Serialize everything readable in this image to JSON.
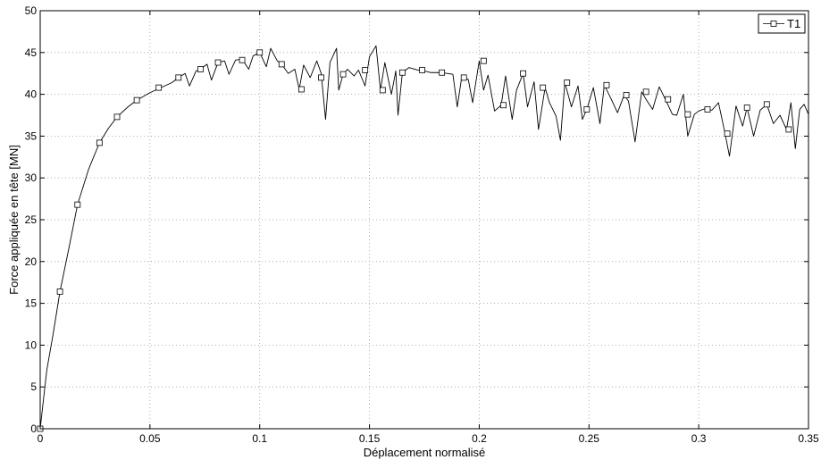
{
  "chart_data": {
    "type": "line",
    "xlabel": "Déplacement normalisé",
    "ylabel": "Force appliquée en tête [MN]",
    "xlim": [
      0,
      0.35
    ],
    "ylim": [
      0,
      50
    ],
    "xticks": [
      0,
      0.05,
      0.1,
      0.15,
      0.2,
      0.25,
      0.3,
      0.35
    ],
    "xtick_labels": [
      "0",
      "0.05",
      "0.1",
      "0.15",
      "0.2",
      "0.25",
      "0.3",
      "0.35"
    ],
    "yticks": [
      0,
      5,
      10,
      15,
      20,
      25,
      30,
      35,
      40,
      45,
      50
    ],
    "ytick_labels": [
      "0",
      "5",
      "10",
      "15",
      "20",
      "25",
      "30",
      "35",
      "40",
      "45",
      "50"
    ],
    "grid": true,
    "legend_position": "top-right",
    "series": [
      {
        "name": "T1",
        "color": "#000000",
        "marker": "square",
        "x": [
          0,
          0.003,
          0.006,
          0.009,
          0.013,
          0.017,
          0.022,
          0.027,
          0.031,
          0.035,
          0.04,
          0.044,
          0.05,
          0.055,
          0.06,
          0.063,
          0.066,
          0.068,
          0.071,
          0.073,
          0.076,
          0.078,
          0.081,
          0.084,
          0.086,
          0.089,
          0.092,
          0.095,
          0.097,
          0.1,
          0.103,
          0.105,
          0.108,
          0.11,
          0.113,
          0.116,
          0.118,
          0.12,
          0.123,
          0.126,
          0.128,
          0.13,
          0.132,
          0.135,
          0.136,
          0.138,
          0.14,
          0.143,
          0.145,
          0.148,
          0.15,
          0.153,
          0.155,
          0.157,
          0.16,
          0.162,
          0.163,
          0.165,
          0.168,
          0.172,
          0.175,
          0.178,
          0.183,
          0.188,
          0.19,
          0.192,
          0.195,
          0.197,
          0.2,
          0.202,
          0.204,
          0.207,
          0.21,
          0.212,
          0.215,
          0.217,
          0.22,
          0.222,
          0.225,
          0.227,
          0.23,
          0.232,
          0.235,
          0.237,
          0.239,
          0.242,
          0.245,
          0.247,
          0.249,
          0.252,
          0.255,
          0.257,
          0.26,
          0.263,
          0.266,
          0.268,
          0.271,
          0.274,
          0.276,
          0.279,
          0.282,
          0.285,
          0.288,
          0.29,
          0.293,
          0.295,
          0.298,
          0.3,
          0.303,
          0.306,
          0.309,
          0.312,
          0.314,
          0.317,
          0.32,
          0.322,
          0.325,
          0.328,
          0.331,
          0.334,
          0.337,
          0.34,
          0.342,
          0.344,
          0.346,
          0.348,
          0.35
        ],
        "y": [
          0,
          7,
          11.5,
          16.4,
          21.5,
          26.8,
          31,
          34.2,
          35.9,
          37.3,
          38.5,
          39.3,
          40.2,
          40.8,
          41.4,
          42,
          42.5,
          41,
          42.8,
          43,
          43.6,
          41.7,
          43.8,
          44,
          42.4,
          44.1,
          44.2,
          43,
          44.6,
          45,
          43.3,
          45.5,
          44,
          43.6,
          42.5,
          43,
          40.6,
          43.5,
          42,
          44,
          42.5,
          37,
          43.8,
          45.5,
          40.5,
          42.4,
          43,
          42.2,
          42.9,
          41,
          44.5,
          45.8,
          40.5,
          43.8,
          40,
          42.8,
          37.5,
          42.6,
          43.2,
          42.9,
          42.8,
          42.6,
          42.6,
          42.4,
          38.5,
          42,
          41.8,
          39,
          44,
          40.5,
          42.3,
          38,
          38.7,
          42.2,
          37,
          40.5,
          42.5,
          38.5,
          41.5,
          35.8,
          40.8,
          39,
          37.4,
          34.5,
          41.4,
          38.5,
          41,
          37,
          38.2,
          40.8,
          36.5,
          41.1,
          39.5,
          37.8,
          39.9,
          39.2,
          34.3,
          40.3,
          39.4,
          38.2,
          40.9,
          39.3,
          37.6,
          37.5,
          40,
          35,
          37.6,
          38,
          38.3,
          38.1,
          39,
          35.3,
          32.6,
          38.6,
          36.2,
          38.4,
          35,
          38.1,
          38.8,
          36.5,
          37.5,
          35.8,
          39,
          33.5,
          38.2,
          38.8,
          37.6
        ],
        "marker_x": [
          0,
          0.009,
          0.017,
          0.027,
          0.035,
          0.044,
          0.054,
          0.063,
          0.073,
          0.081,
          0.092,
          0.1,
          0.11,
          0.119,
          0.128,
          0.138,
          0.148,
          0.156,
          0.165,
          0.174,
          0.183,
          0.193,
          0.202,
          0.211,
          0.22,
          0.229,
          0.24,
          0.249,
          0.258,
          0.267,
          0.276,
          0.286,
          0.295,
          0.304,
          0.313,
          0.322,
          0.331,
          0.341
        ],
        "marker_y": [
          0,
          16.4,
          26.8,
          34.2,
          37.3,
          39.3,
          40.8,
          42,
          43,
          43.8,
          44.1,
          45,
          43.6,
          40.6,
          42,
          42.4,
          42.9,
          40.5,
          42.6,
          42.9,
          42.6,
          42,
          44,
          38.7,
          42.5,
          40.8,
          41.4,
          38.2,
          41.1,
          39.9,
          40.3,
          39.4,
          37.6,
          38.2,
          35.3,
          38.4,
          38.8,
          35.8
        ]
      }
    ]
  }
}
